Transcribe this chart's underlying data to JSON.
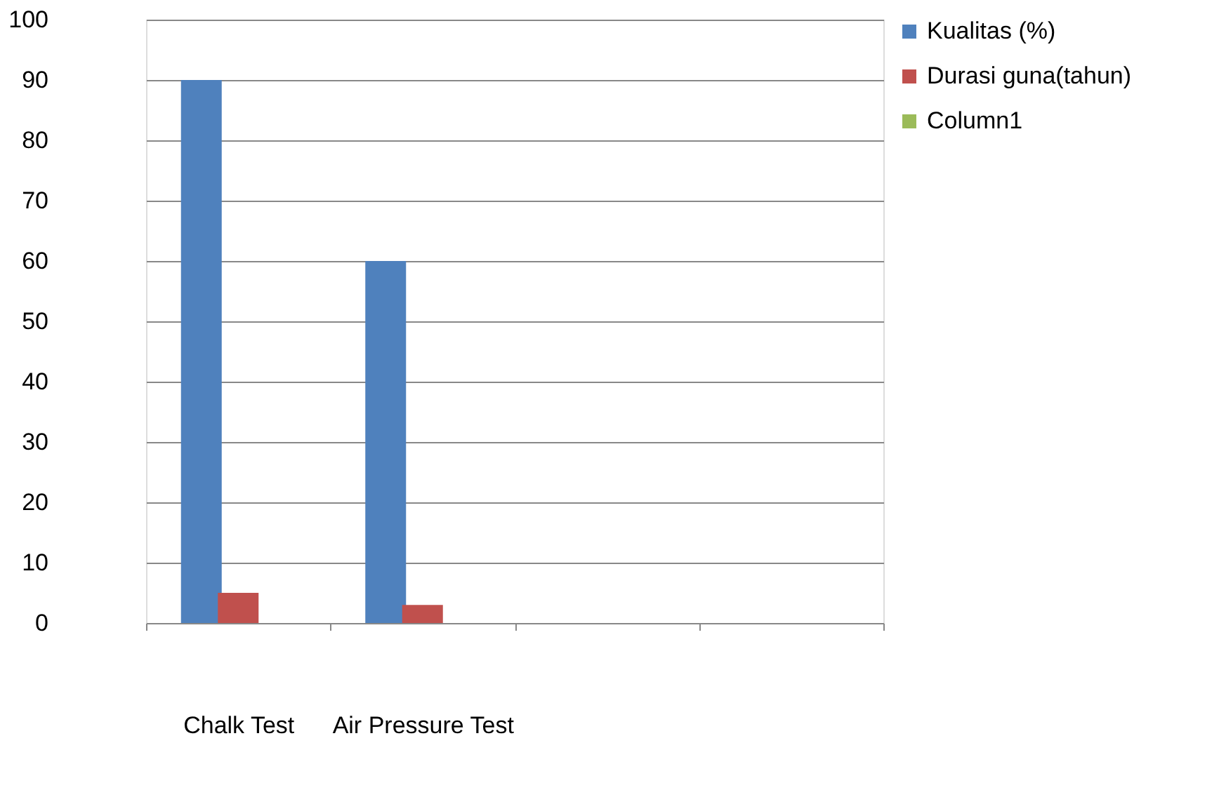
{
  "chart_data": {
    "type": "bar",
    "categories": [
      "Chalk Test",
      "Air Pressure Test",
      null,
      null
    ],
    "series": [
      {
        "name": "Kualitas (%)",
        "color": "#4f81bd",
        "values": [
          90,
          60,
          null,
          null
        ]
      },
      {
        "name": "Durasi guna(tahun)",
        "color": "#c0504d",
        "values": [
          5,
          3,
          null,
          null
        ]
      },
      {
        "name": "Column1",
        "color": "#9bbb59",
        "values": [
          null,
          null,
          null,
          null
        ]
      }
    ],
    "ylim": [
      0,
      100
    ],
    "yticks": [
      0,
      10,
      20,
      30,
      40,
      50,
      60,
      70,
      80,
      90,
      100
    ],
    "grid": "y",
    "legend": "right"
  }
}
